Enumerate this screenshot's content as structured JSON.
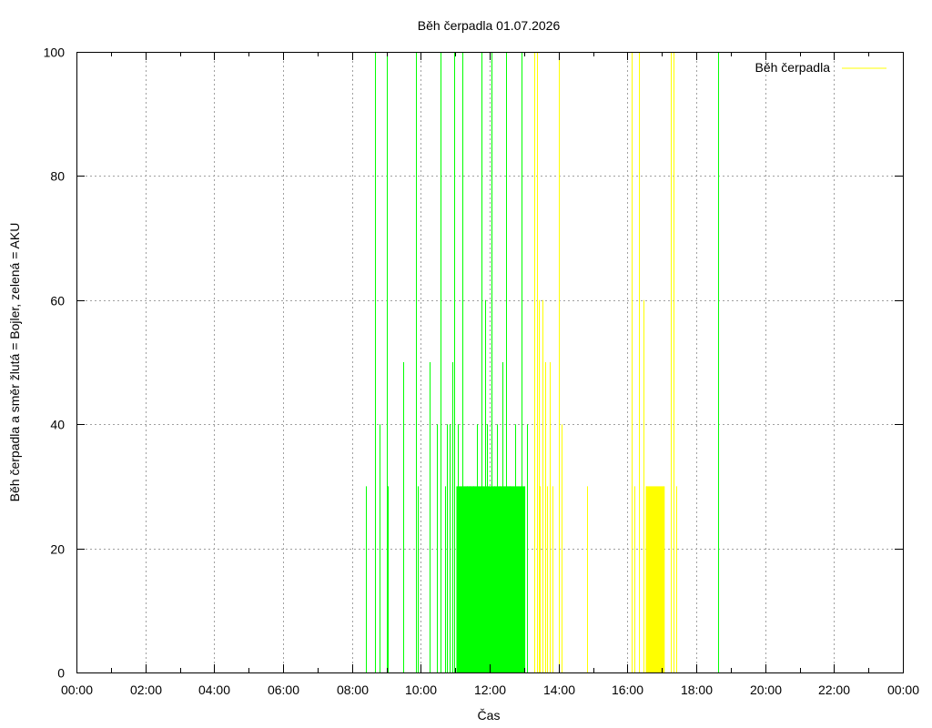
{
  "chart_data": {
    "type": "bar",
    "title": "Běh čerpadla 01.07.2026",
    "xlabel": "Čas",
    "ylabel": "Běh čerpadla a směr žlutá = Bojler, zelená = AKU",
    "xlim": [
      "00:00",
      "24:00"
    ],
    "ylim": [
      0,
      100
    ],
    "x_ticks": [
      "00:00",
      "02:00",
      "04:00",
      "06:00",
      "08:00",
      "10:00",
      "12:00",
      "14:00",
      "16:00",
      "18:00",
      "20:00",
      "22:00",
      "00:00"
    ],
    "y_ticks": [
      "0",
      "20",
      "40",
      "60",
      "80",
      "100"
    ],
    "grid": true,
    "legend": {
      "position": "top-right",
      "entries": [
        {
          "label": "Běh čerpadla",
          "color": "#ffff00"
        }
      ]
    },
    "colors": {
      "aku": "#00ff00",
      "bojler": "#ffff00"
    },
    "series": [
      {
        "direction": "AKU",
        "color": "#00ff00",
        "x": [
          "08:25",
          "08:40",
          "08:48",
          "09:00",
          "09:03",
          "09:30",
          "09:52",
          "09:55",
          "10:15",
          "10:28",
          "10:35",
          "10:42",
          "10:45",
          "10:50",
          "10:55",
          "10:58",
          "11:05",
          "11:12",
          "11:20",
          "11:25",
          "11:32",
          "11:38",
          "11:45",
          "11:52",
          "11:55",
          "11:58",
          "12:03",
          "12:08",
          "12:12",
          "12:18",
          "12:22",
          "12:28",
          "12:35",
          "12:45",
          "12:55",
          "13:05",
          "18:38"
        ],
        "values": [
          30,
          100,
          40,
          100,
          30,
          50,
          100,
          30,
          50,
          40,
          100,
          30,
          40,
          40,
          50,
          100,
          40,
          100,
          30,
          30,
          30,
          40,
          100,
          60,
          40,
          30,
          100,
          30,
          40,
          30,
          50,
          100,
          30,
          40,
          100,
          40,
          100
        ]
      },
      {
        "direction": "AKU",
        "color": "#00ff00",
        "blocks": [
          {
            "from": "11:02",
            "to": "13:02",
            "value": 30
          }
        ]
      },
      {
        "direction": "Bojler",
        "color": "#ffff00",
        "x": [
          "13:18",
          "13:22",
          "13:25",
          "13:28",
          "13:32",
          "13:36",
          "13:40",
          "13:45",
          "13:50",
          "14:00",
          "14:05",
          "14:50",
          "16:08",
          "16:12",
          "16:20",
          "16:28",
          "16:32",
          "17:15",
          "17:20",
          "17:25"
        ],
        "values": [
          100,
          100,
          60,
          30,
          60,
          50,
          30,
          50,
          30,
          100,
          40,
          30,
          100,
          30,
          100,
          60,
          30,
          100,
          100,
          30
        ],
        "blocks": [
          {
            "from": "16:32",
            "to": "17:05",
            "value": 30
          }
        ]
      }
    ]
  }
}
